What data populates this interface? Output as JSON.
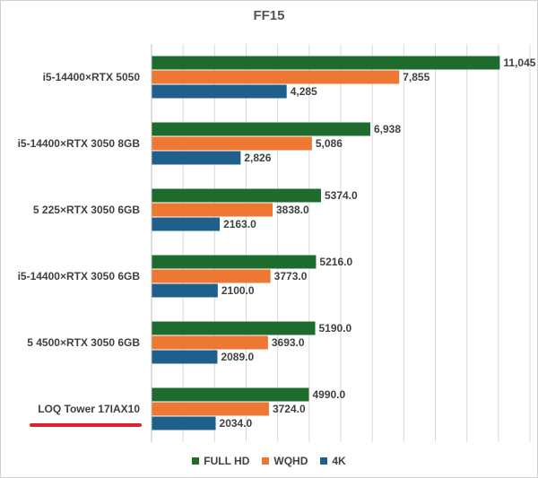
{
  "chart_data": {
    "type": "bar",
    "orientation": "horizontal",
    "title": "FF15",
    "categories": [
      "i5-14400×RTX 5050",
      "i5-14400×RTX 3050 8GB",
      "5 225×RTX 3050 6GB",
      "i5-14400×RTX 3050 6GB",
      "5 4500×RTX 3050 6GB",
      "LOQ Tower 17IAX10"
    ],
    "highlighted_category": "LOQ Tower 17IAX10",
    "series": [
      {
        "name": "FULL HD",
        "color": "#1e6b2e",
        "values": [
          11045,
          6938,
          5374.0,
          5216.0,
          5190.0,
          4990.0
        ],
        "labels": [
          "11,045",
          "6,938",
          "5374.0",
          "5216.0",
          "5190.0",
          "4990.0"
        ]
      },
      {
        "name": "WQHD",
        "color": "#ee7733",
        "values": [
          7855,
          5086,
          3838.0,
          3773.0,
          3693.0,
          3724.0
        ],
        "labels": [
          "7,855",
          "5,086",
          "3838.0",
          "3773.0",
          "3693.0",
          "3724.0"
        ]
      },
      {
        "name": "4K",
        "color": "#1f5f8b",
        "values": [
          4285,
          2826,
          2163.0,
          2100.0,
          2089.0,
          2034.0
        ],
        "labels": [
          "4,285",
          "2,826",
          "2163.0",
          "2100.0",
          "2089.0",
          "2034.0"
        ]
      }
    ],
    "xlim": [
      0,
      12000
    ],
    "grid": true,
    "legend_position": "bottom",
    "highlight_color": "#e0202a"
  }
}
